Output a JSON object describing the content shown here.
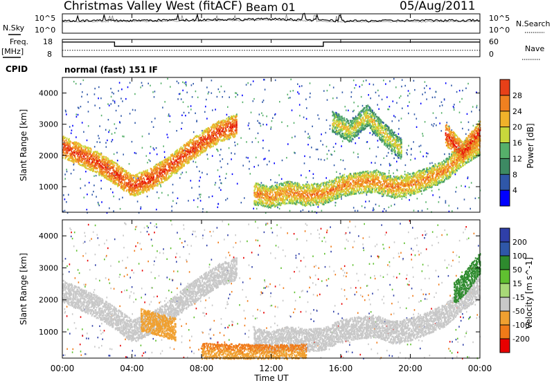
{
  "header": {
    "station": "Christmas Valley West (fitACF)",
    "beam": "Beam 01",
    "date": "05/Aug/2011"
  },
  "top_panels": {
    "nsky_label": "N.Sky",
    "nsearch_label": "N.Search",
    "noise_ticks": [
      "10^5",
      "10^0"
    ],
    "freq_label_1": "Freq.",
    "freq_label_2": "[MHz]",
    "freq_ticks": [
      "18",
      "8"
    ],
    "nave_label": "Nave",
    "nave_ticks": [
      "60",
      "0"
    ],
    "cpid_label": "CPID",
    "cpid_text": "normal (fast) 151 IF"
  },
  "time_axis": {
    "label": "Time UT",
    "ticks": [
      "00:00",
      "04:00",
      "08:00",
      "12:00",
      "16:00",
      "20:00",
      "00:00"
    ]
  },
  "colors": {
    "power": [
      "#0000ff",
      "#2f57a8",
      "#3d8a63",
      "#56b06a",
      "#c8d83c",
      "#f0b22a",
      "#f08020",
      "#e84018",
      "#e80000"
    ],
    "velocity": [
      "#2f3fa8",
      "#2f57a8",
      "#2e8b2e",
      "#60c030",
      "#a8d878",
      "#c8c8c8",
      "#f0a030",
      "#f07a18",
      "#e84018",
      "#e80000"
    ]
  },
  "chart_data": [
    {
      "type": "line",
      "title": "N.Sky / N.Search",
      "x": [
        "00:00",
        "04:00",
        "08:00",
        "12:00",
        "16:00",
        "20:00",
        "00:00"
      ],
      "series": [
        {
          "name": "N.Sky",
          "values": [
            1800,
            2000,
            3200,
            5000,
            1500,
            2000,
            2500
          ]
        },
        {
          "name": "N.Search",
          "values": [
            900,
            1100,
            1600,
            2500,
            800,
            1000,
            1200
          ]
        }
      ],
      "ylim": [
        "10^0",
        "10^5"
      ],
      "log_scale": true
    },
    {
      "type": "line",
      "title": "Freq. [MHz] / Nave",
      "x": [
        "00:00",
        "03:00",
        "03:00",
        "15:00",
        "15:00",
        "24:00"
      ],
      "series": [
        {
          "name": "Freq. [MHz]",
          "values": [
            16.5,
            16.5,
            14,
            14,
            16.5,
            16.5
          ]
        },
        {
          "name": "Nave",
          "values": [
            22,
            22,
            22,
            22,
            22,
            22
          ]
        }
      ],
      "ylim": [
        8,
        18
      ],
      "y2lim": [
        0,
        60
      ]
    },
    {
      "type": "heatmap",
      "title": "Power [dB]",
      "xlabel": "Time UT",
      "ylabel": "Slant Range [km]",
      "xlim": [
        0,
        24
      ],
      "ylim": [
        180,
        4500
      ],
      "yticks": [
        1000,
        2000,
        3000,
        4000
      ],
      "colorbar": {
        "label": "Power [dB]",
        "ticks": [
          4,
          8,
          12,
          16,
          20,
          24,
          28
        ],
        "range": [
          0,
          30
        ]
      },
      "ridges": [
        {
          "t": [
            0,
            1,
            2,
            3,
            4,
            5,
            6,
            7,
            8,
            9,
            10
          ],
          "r": [
            2300,
            2050,
            1800,
            1450,
            1050,
            1250,
            1600,
            2050,
            2450,
            2800,
            3000
          ],
          "power": 26
        },
        {
          "t": [
            11,
            12,
            13,
            14,
            15,
            16,
            17,
            18,
            19,
            20,
            21,
            22,
            23,
            24
          ],
          "r": [
            800,
            700,
            850,
            750,
            800,
            1050,
            1150,
            1200,
            1000,
            1100,
            1300,
            1550,
            2050,
            2400
          ],
          "power": 22
        },
        {
          "t": [
            15.5,
            16.5,
            17.5,
            18.5,
            19.5
          ],
          "r": [
            3100,
            2800,
            3300,
            2700,
            2200
          ],
          "power": 18
        },
        {
          "t": [
            22,
            23,
            24
          ],
          "r": [
            2700,
            2100,
            2800
          ],
          "power": 27
        }
      ]
    },
    {
      "type": "heatmap",
      "title": "Velocity [m s^-1]",
      "xlabel": "Time UT",
      "ylabel": "Slant Range [km]",
      "xlim": [
        0,
        24
      ],
      "ylim": [
        180,
        4500
      ],
      "yticks": [
        1000,
        2000,
        3000,
        4000
      ],
      "colorbar": {
        "label": "Velocity [m s^-1]",
        "ticks": [
          200,
          100,
          50,
          15,
          -15,
          -50,
          -100,
          -200
        ],
        "range": [
          -250,
          250
        ]
      },
      "ridges": [
        {
          "t": [
            0,
            1,
            2,
            3,
            4,
            5,
            6,
            7,
            8,
            9,
            10
          ],
          "r": [
            2300,
            2050,
            1800,
            1450,
            1050,
            1250,
            1600,
            2050,
            2450,
            2800,
            3000
          ],
          "velocity": -10
        },
        {
          "t": [
            11,
            12,
            13,
            14,
            15,
            16,
            17,
            18,
            19,
            20,
            21,
            22,
            23,
            24
          ],
          "r": [
            800,
            700,
            850,
            750,
            800,
            1050,
            1150,
            1200,
            1000,
            1100,
            1300,
            1550,
            2050,
            2400
          ],
          "velocity": -10
        },
        {
          "t": [
            22.5,
            23.2,
            24
          ],
          "r": [
            2200,
            2600,
            3200
          ],
          "velocity": 60
        },
        {
          "t": [
            4.5,
            5.5,
            6.5
          ],
          "r": [
            1400,
            1250,
            1100
          ],
          "velocity": -60
        },
        {
          "t": [
            8,
            10,
            12,
            14
          ],
          "r": [
            320,
            300,
            260,
            300
          ],
          "velocity": -70
        }
      ]
    }
  ]
}
